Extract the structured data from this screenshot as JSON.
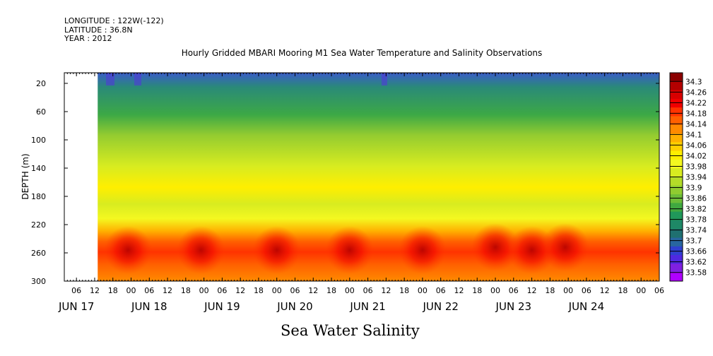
{
  "header": {
    "longitude": "LONGITUDE : 122W(-122)",
    "latitude": "LATITUDE : 36.8N",
    "year": "YEAR : 2012",
    "title": "Hourly Gridded MBARI Mooring M1 Sea Water Temperature and Salinity Observations"
  },
  "footer_title": "Sea Water Salinity",
  "chart_data": {
    "type": "heatmap",
    "title": "Hourly Gridded MBARI Mooring M1 Sea Water Temperature and Salinity Observations",
    "ylabel": "DEPTH (m)",
    "xlabel": "",
    "y_ticks": [
      20,
      60,
      100,
      140,
      180,
      220,
      260,
      300
    ],
    "y_range": [
      300,
      5
    ],
    "x_hour_ticks": [
      "06",
      "12",
      "18",
      "00",
      "06",
      "12",
      "18",
      "00",
      "06",
      "12",
      "18",
      "00",
      "06",
      "12",
      "18",
      "00",
      "06",
      "12",
      "18",
      "00",
      "06",
      "12",
      "18",
      "00",
      "06",
      "12",
      "18",
      "00",
      "06",
      "12",
      "18",
      "00",
      "06"
    ],
    "x_day_labels": [
      "JUN 17",
      "JUN 18",
      "JUN 19",
      "JUN 20",
      "JUN 21",
      "JUN 22",
      "JUN 23",
      "JUN 24"
    ],
    "data_start": "JUN 17 13:00",
    "colorbar_labels": [
      "34.3",
      "34.26",
      "34.22",
      "34.18",
      "34.14",
      "34.1",
      "34.06",
      "34.02",
      "33.98",
      "33.94",
      "33.9",
      "33.86",
      "33.82",
      "33.78",
      "33.74",
      "33.7",
      "33.66",
      "33.62",
      "33.58"
    ],
    "colorbar_colors": [
      "#8b0000",
      "#b40000",
      "#d80000",
      "#f00000",
      "#ff3300",
      "#ff6000",
      "#ff8a00",
      "#ffb000",
      "#ffd000",
      "#ffee00",
      "#f4f820",
      "#d8ec20",
      "#b4dc28",
      "#90cc30",
      "#6cbc38",
      "#40a840",
      "#20985a",
      "#1e8866",
      "#1f7070",
      "#2866a0",
      "#3040d0",
      "#5028e0",
      "#8020e0",
      "#b000ff"
    ],
    "salinity_profile": [
      {
        "depth": 10,
        "value": 33.72
      },
      {
        "depth": 30,
        "value": 33.78
      },
      {
        "depth": 60,
        "value": 33.82
      },
      {
        "depth": 90,
        "value": 33.9
      },
      {
        "depth": 120,
        "value": 33.96
      },
      {
        "depth": 150,
        "value": 34.02
      },
      {
        "depth": 180,
        "value": 33.98
      },
      {
        "depth": 200,
        "value": 34.02
      },
      {
        "depth": 220,
        "value": 34.1
      },
      {
        "depth": 240,
        "value": 34.16
      },
      {
        "depth": 260,
        "value": 34.2
      },
      {
        "depth": 280,
        "value": 34.16
      },
      {
        "depth": 300,
        "value": 34.14
      }
    ],
    "salinity_maxima": [
      {
        "time": "JUN 17 23:00",
        "depth": 256,
        "value": 34.22
      },
      {
        "time": "JUN 18 23:00",
        "depth": 256,
        "value": 34.22
      },
      {
        "time": "JUN 20 00:00",
        "depth": 256,
        "value": 34.22
      },
      {
        "time": "JUN 21 00:00",
        "depth": 256,
        "value": 34.24
      },
      {
        "time": "JUN 22 00:00",
        "depth": 256,
        "value": 34.24
      },
      {
        "time": "JUN 23 00:00",
        "depth": 252,
        "value": 34.28
      },
      {
        "time": "JUN 23 12:00",
        "depth": 256,
        "value": 34.28
      },
      {
        "time": "JUN 23 23:00",
        "depth": 252,
        "value": 34.28
      }
    ]
  }
}
